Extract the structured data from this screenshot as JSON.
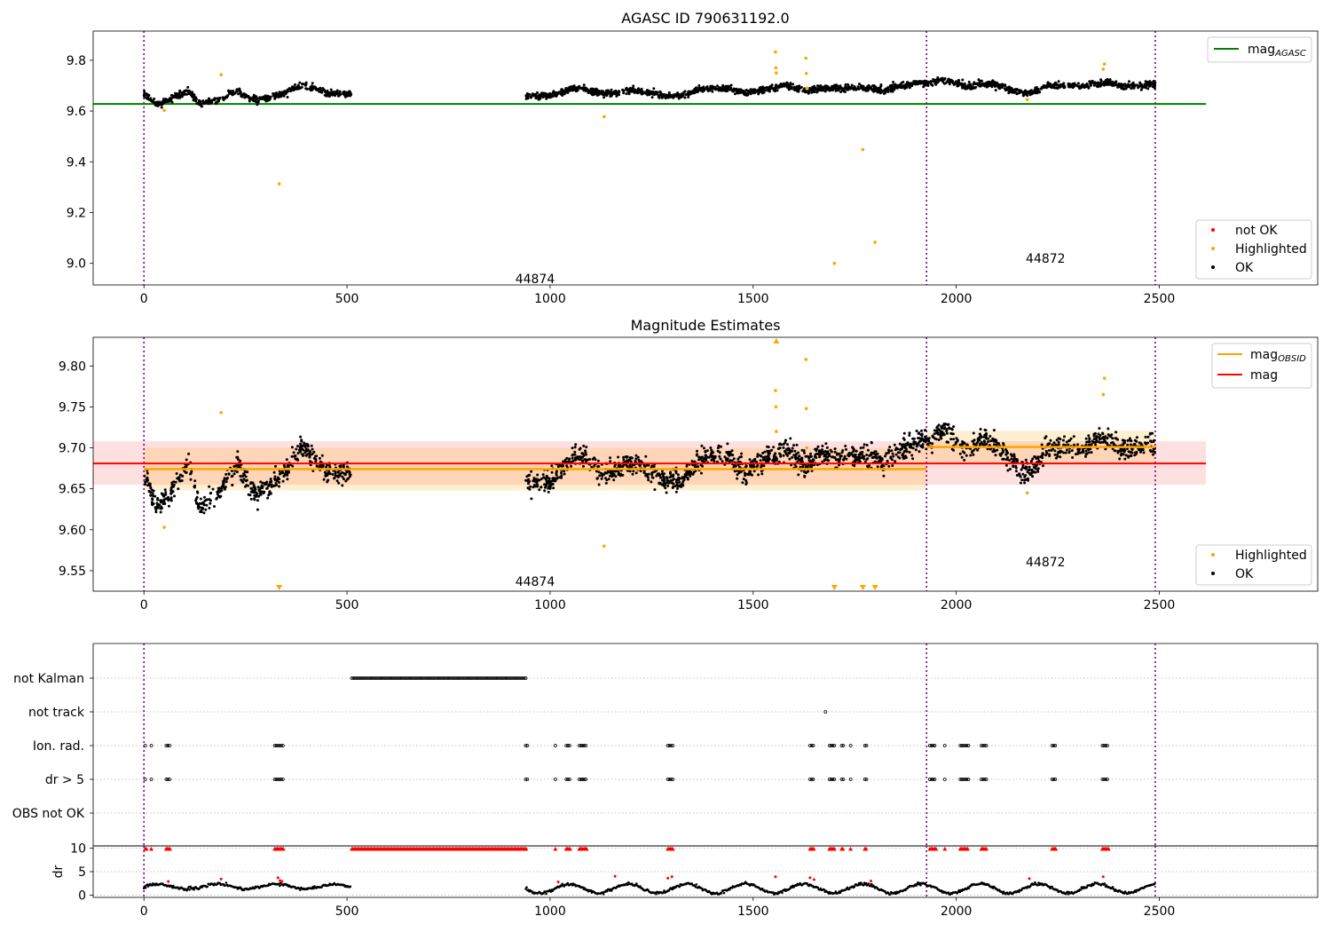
{
  "chart_data": [
    {
      "panel": "top",
      "type": "scatter",
      "title": "AGASC ID 790631192.0",
      "xlim": [
        -125,
        2890
      ],
      "ylim": [
        8.915,
        9.915
      ],
      "xticks": [
        0,
        500,
        1000,
        1500,
        2000,
        2500
      ],
      "yticks": [
        9.0,
        9.2,
        9.4,
        9.6,
        9.8
      ],
      "ytick_labels": [
        "9.0",
        "9.2",
        "9.4",
        "9.6",
        "9.8"
      ],
      "grid": false,
      "obsid_boundaries": [
        0,
        1927,
        2490
      ],
      "obsid_labels": [
        {
          "text": "44874",
          "x": 963,
          "y": 8.94
        },
        {
          "text": "44872",
          "x": 2220,
          "y": 9.02
        }
      ],
      "reference_line": {
        "name": "mag_AGASC",
        "value": 9.628,
        "x_range": [
          -125,
          2615
        ],
        "color": "#008000"
      },
      "ok_segments": [
        {
          "x": [
            0,
            10,
            20,
            30,
            40,
            50,
            60,
            70,
            80,
            90,
            100,
            110,
            120,
            130,
            140,
            150,
            160,
            170,
            180,
            190,
            200,
            210,
            220,
            230,
            240,
            250,
            260,
            270,
            280,
            290,
            300,
            310,
            320,
            330,
            340,
            350,
            360,
            370,
            380,
            390,
            400,
            410,
            420,
            430,
            440,
            450,
            460,
            470,
            480,
            490,
            500,
            510
          ],
          "y": [
            9.67,
            9.66,
            9.64,
            9.63,
            9.63,
            9.64,
            9.64,
            9.65,
            9.66,
            9.66,
            9.67,
            9.68,
            9.66,
            9.64,
            9.63,
            9.63,
            9.64,
            9.64,
            9.64,
            9.65,
            9.66,
            9.67,
            9.67,
            9.68,
            9.67,
            9.66,
            9.65,
            9.65,
            9.64,
            9.65,
            9.65,
            9.65,
            9.66,
            9.66,
            9.67,
            9.67,
            9.68,
            9.69,
            9.7,
            9.7,
            9.7,
            9.69,
            9.69,
            9.68,
            9.68,
            9.67,
            9.67,
            9.67,
            9.67,
            9.67,
            9.67,
            9.67
          ]
        },
        {
          "x": [
            940,
            960,
            980,
            1000,
            1020,
            1040,
            1060,
            1080,
            1100,
            1120,
            1140,
            1160,
            1180,
            1200,
            1220,
            1240,
            1260,
            1280,
            1300,
            1320,
            1340,
            1360,
            1380,
            1400,
            1420,
            1440,
            1460,
            1480,
            1500,
            1520,
            1540,
            1560,
            1580,
            1600,
            1620,
            1640,
            1660,
            1680,
            1700,
            1720,
            1740,
            1760,
            1780,
            1800,
            1820,
            1840,
            1860,
            1880,
            1900,
            1920,
            1940,
            1960,
            1980,
            2000,
            2020,
            2040,
            2060,
            2080,
            2100,
            2120,
            2140,
            2160,
            2180,
            2200,
            2220,
            2240,
            2260,
            2280,
            2300,
            2320,
            2340,
            2360,
            2380,
            2400,
            2420,
            2440,
            2460,
            2480,
            2490
          ],
          "y": [
            9.66,
            9.66,
            9.66,
            9.66,
            9.67,
            9.68,
            9.69,
            9.69,
            9.68,
            9.67,
            9.67,
            9.67,
            9.68,
            9.68,
            9.68,
            9.67,
            9.67,
            9.66,
            9.66,
            9.66,
            9.67,
            9.68,
            9.69,
            9.69,
            9.69,
            9.69,
            9.68,
            9.67,
            9.68,
            9.68,
            9.69,
            9.69,
            9.7,
            9.69,
            9.68,
            9.68,
            9.69,
            9.69,
            9.69,
            9.69,
            9.69,
            9.69,
            9.69,
            9.69,
            9.68,
            9.69,
            9.7,
            9.7,
            9.71,
            9.71,
            9.71,
            9.72,
            9.72,
            9.71,
            9.7,
            9.7,
            9.71,
            9.71,
            9.7,
            9.69,
            9.68,
            9.67,
            9.67,
            9.68,
            9.7,
            9.7,
            9.7,
            9.7,
            9.7,
            9.7,
            9.71,
            9.71,
            9.71,
            9.7,
            9.7,
            9.7,
            9.7,
            9.71,
            9.7
          ]
        }
      ],
      "ok_scatter": 0.011,
      "highlighted": {
        "x": [
          50,
          190,
          333,
          1133,
          1555,
          1556,
          1557,
          1630,
          1631,
          1632,
          1700,
          1770,
          1800,
          2175,
          2362,
          2365
        ],
        "y": [
          9.603,
          9.743,
          9.313,
          9.578,
          9.833,
          9.77,
          9.75,
          9.808,
          9.748,
          9.69,
          9.0,
          9.448,
          9.083,
          9.645,
          9.765,
          9.785
        ]
      },
      "legend_lines": [
        {
          "name_main": "mag",
          "name_sub": "AGASC",
          "color": "#008000"
        }
      ],
      "legend_points": [
        {
          "name": "not OK",
          "color": "#ff0000"
        },
        {
          "name": "Highlighted",
          "color": "#ffa500"
        },
        {
          "name": "OK",
          "color": "#000000"
        }
      ]
    },
    {
      "panel": "middle",
      "type": "scatter",
      "title": "Magnitude Estimates",
      "xlim": [
        -125,
        2890
      ],
      "ylim": [
        9.525,
        9.835
      ],
      "xticks": [
        0,
        500,
        1000,
        1500,
        2000,
        2500
      ],
      "yticks": [
        9.55,
        9.6,
        9.65,
        9.7,
        9.75,
        9.8
      ],
      "ytick_labels": [
        "9.55",
        "9.60",
        "9.65",
        "9.70",
        "9.75",
        "9.80"
      ],
      "grid": false,
      "obsid_boundaries": [
        0,
        1927,
        2490
      ],
      "obsid_labels": [
        {
          "text": "44874",
          "x": 963,
          "y": 9.537
        },
        {
          "text": "44872",
          "x": 2220,
          "y": 9.561
        }
      ],
      "mag_line": {
        "name": "mag",
        "value": 9.681,
        "band": [
          9.655,
          9.708
        ],
        "x_range": [
          -125,
          2615
        ],
        "color": "#ff0000"
      },
      "mag_obsid": [
        {
          "x_range": [
            0,
            1927
          ],
          "value": 9.674,
          "band": [
            9.648,
            9.7
          ]
        },
        {
          "x_range": [
            1927,
            2490
          ],
          "value": 9.701,
          "band": [
            9.682,
            9.721
          ]
        }
      ],
      "ok_segments": [
        {
          "x": [
            0,
            10,
            20,
            30,
            40,
            50,
            60,
            70,
            80,
            90,
            100,
            110,
            120,
            130,
            140,
            150,
            160,
            170,
            180,
            190,
            200,
            210,
            220,
            230,
            240,
            250,
            260,
            270,
            280,
            290,
            300,
            310,
            320,
            330,
            340,
            350,
            360,
            370,
            380,
            390,
            400,
            410,
            420,
            430,
            440,
            450,
            460,
            470,
            480,
            490,
            500,
            510
          ],
          "y": [
            9.67,
            9.66,
            9.64,
            9.63,
            9.63,
            9.64,
            9.64,
            9.65,
            9.66,
            9.66,
            9.67,
            9.68,
            9.66,
            9.64,
            9.63,
            9.63,
            9.64,
            9.64,
            9.64,
            9.65,
            9.66,
            9.67,
            9.67,
            9.68,
            9.67,
            9.66,
            9.65,
            9.65,
            9.64,
            9.65,
            9.65,
            9.65,
            9.66,
            9.66,
            9.67,
            9.67,
            9.68,
            9.69,
            9.7,
            9.7,
            9.7,
            9.69,
            9.69,
            9.68,
            9.68,
            9.67,
            9.67,
            9.67,
            9.67,
            9.67,
            9.67,
            9.67
          ]
        },
        {
          "x": [
            940,
            960,
            980,
            1000,
            1020,
            1040,
            1060,
            1080,
            1100,
            1120,
            1140,
            1160,
            1180,
            1200,
            1220,
            1240,
            1260,
            1280,
            1300,
            1320,
            1340,
            1360,
            1380,
            1400,
            1420,
            1440,
            1460,
            1480,
            1500,
            1520,
            1540,
            1560,
            1580,
            1600,
            1620,
            1640,
            1660,
            1680,
            1700,
            1720,
            1740,
            1760,
            1780,
            1800,
            1820,
            1840,
            1860,
            1880,
            1900,
            1920,
            1940,
            1960,
            1980,
            2000,
            2020,
            2040,
            2060,
            2080,
            2100,
            2120,
            2140,
            2160,
            2180,
            2200,
            2220,
            2240,
            2260,
            2280,
            2300,
            2320,
            2340,
            2360,
            2380,
            2400,
            2420,
            2440,
            2460,
            2480,
            2490
          ],
          "y": [
            9.66,
            9.66,
            9.66,
            9.66,
            9.67,
            9.68,
            9.69,
            9.69,
            9.68,
            9.67,
            9.67,
            9.67,
            9.68,
            9.68,
            9.68,
            9.67,
            9.67,
            9.66,
            9.66,
            9.66,
            9.67,
            9.68,
            9.69,
            9.69,
            9.69,
            9.69,
            9.68,
            9.67,
            9.68,
            9.68,
            9.69,
            9.69,
            9.7,
            9.69,
            9.68,
            9.68,
            9.69,
            9.69,
            9.69,
            9.69,
            9.69,
            9.69,
            9.69,
            9.69,
            9.68,
            9.69,
            9.7,
            9.7,
            9.71,
            9.71,
            9.71,
            9.72,
            9.72,
            9.71,
            9.7,
            9.7,
            9.71,
            9.71,
            9.7,
            9.69,
            9.68,
            9.67,
            9.67,
            9.68,
            9.7,
            9.7,
            9.7,
            9.7,
            9.7,
            9.7,
            9.71,
            9.71,
            9.71,
            9.7,
            9.7,
            9.7,
            9.7,
            9.71,
            9.7
          ]
        }
      ],
      "ok_scatter": 0.011,
      "highlighted": {
        "x": [
          50,
          190,
          1133,
          1555,
          1556,
          1557,
          1630,
          1631,
          1632,
          2175,
          2362,
          2365
        ],
        "y": [
          9.603,
          9.743,
          9.58,
          9.77,
          9.75,
          9.72,
          9.808,
          9.748,
          9.7,
          9.645,
          9.765,
          9.785
        ]
      },
      "off_scale_low": [
        333,
        1700,
        1770,
        1800
      ],
      "off_scale_high": [
        1557
      ],
      "legend_lines": [
        {
          "name_main": "mag",
          "name_sub": "OBSID",
          "color": "#ffa500"
        },
        {
          "name_main": "mag",
          "name_sub": "",
          "color": "#ff0000"
        }
      ],
      "legend_points": [
        {
          "name": "Highlighted",
          "color": "#ffa500"
        },
        {
          "name": "OK",
          "color": "#000000"
        }
      ]
    },
    {
      "panel": "flags",
      "type": "scatter",
      "xlim": [
        -125,
        2890
      ],
      "categories": [
        "not Kalman",
        "not track",
        "Ion. rad.",
        "dr > 5",
        "OBS not OK"
      ],
      "grid": "horizontal dotted",
      "obsid_boundaries": [
        0,
        1927,
        2490
      ],
      "flag_ranges": {
        "not Kalman": [
          [
            512,
            942
          ]
        ],
        "not track": [
          [
            1678,
            1680
          ]
        ],
        "Ion. rad.": [
          [
            3,
            6
          ],
          [
            18,
            20
          ],
          [
            55,
            64
          ],
          [
            322,
            345
          ],
          [
            940,
            944
          ],
          [
            1013,
            1015
          ],
          [
            1040,
            1050
          ],
          [
            1072,
            1090
          ],
          [
            1290,
            1302
          ],
          [
            1640,
            1650
          ],
          [
            1688,
            1700
          ],
          [
            1718,
            1722
          ],
          [
            1740,
            1742
          ],
          [
            1775,
            1780
          ],
          [
            1935,
            1950
          ],
          [
            1972,
            1974
          ],
          [
            2010,
            2030
          ],
          [
            2062,
            2075
          ],
          [
            2236,
            2245
          ],
          [
            2360,
            2375
          ]
        ],
        "dr > 5": [
          [
            3,
            6
          ],
          [
            18,
            20
          ],
          [
            55,
            64
          ],
          [
            322,
            345
          ],
          [
            940,
            944
          ],
          [
            1013,
            1015
          ],
          [
            1040,
            1050
          ],
          [
            1072,
            1090
          ],
          [
            1290,
            1302
          ],
          [
            1640,
            1650
          ],
          [
            1688,
            1700
          ],
          [
            1718,
            1722
          ],
          [
            1740,
            1742
          ],
          [
            1775,
            1780
          ],
          [
            1935,
            1950
          ],
          [
            1972,
            1974
          ],
          [
            2010,
            2030
          ],
          [
            2062,
            2075
          ],
          [
            2236,
            2245
          ],
          [
            2360,
            2375
          ]
        ],
        "OBS not OK": []
      }
    },
    {
      "panel": "dr",
      "type": "scatter",
      "ylabel": "dr",
      "xlim": [
        -125,
        2890
      ],
      "ylim": [
        -0.5,
        10.5
      ],
      "xticks": [
        0,
        500,
        1000,
        1500,
        2000,
        2500
      ],
      "yticks": [
        0,
        5,
        10
      ],
      "ytick_labels": [
        "0",
        "5",
        "10"
      ],
      "obsid_boundaries": [
        0,
        1927,
        2490
      ],
      "dr_segments": [
        {
          "x_range": [
            0,
            510
          ],
          "base": 1.8,
          "amplitude": 0.5
        },
        {
          "x_range": [
            940,
            2490
          ],
          "base": 1.4,
          "amplitude": 1.0
        }
      ],
      "clipped_at_10": [
        [
          3,
          6
        ],
        [
          18,
          20
        ],
        [
          55,
          64
        ],
        [
          322,
          345
        ],
        [
          512,
          942
        ],
        [
          1013,
          1015
        ],
        [
          1040,
          1050
        ],
        [
          1072,
          1090
        ],
        [
          1290,
          1302
        ],
        [
          1640,
          1650
        ],
        [
          1688,
          1700
        ],
        [
          1718,
          1722
        ],
        [
          1740,
          1742
        ],
        [
          1775,
          1780
        ],
        [
          1935,
          1950
        ],
        [
          1972,
          1974
        ],
        [
          2010,
          2030
        ],
        [
          2062,
          2075
        ],
        [
          2236,
          2245
        ],
        [
          2360,
          2375
        ]
      ],
      "red_points": {
        "x": [
          60,
          190,
          330,
          335,
          340,
          1020,
          1160,
          1290,
          1300,
          1555,
          1640,
          1650,
          1790,
          2180,
          2362
        ],
        "y": [
          2.9,
          3.4,
          3.7,
          3.1,
          2.9,
          2.8,
          4.0,
          3.6,
          3.9,
          3.9,
          3.7,
          3.3,
          3.0,
          3.5,
          3.9
        ]
      }
    }
  ]
}
